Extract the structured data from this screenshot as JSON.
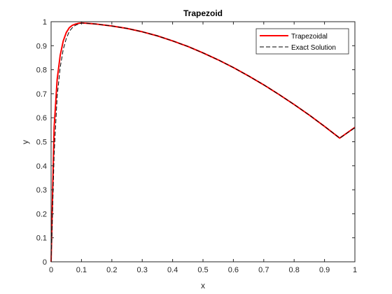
{
  "chart_data": {
    "type": "line",
    "title": "Trapezoid",
    "xlabel": "x",
    "ylabel": "y",
    "xlim": [
      0,
      1
    ],
    "ylim": [
      0,
      1
    ],
    "x_ticks": [
      "0",
      "0.1",
      "0.2",
      "0.3",
      "0.4",
      "0.5",
      "0.6",
      "0.7",
      "0.8",
      "0.9",
      "1"
    ],
    "y_ticks": [
      "0",
      "0.1",
      "0.2",
      "0.3",
      "0.4",
      "0.5",
      "0.6",
      "0.7",
      "0.8",
      "0.9",
      "1"
    ],
    "grid": false,
    "legend_position": "top-right",
    "series": [
      {
        "name": "Trapezoidal",
        "color": "#ff0000",
        "style": "solid",
        "x": [
          0,
          0.005,
          0.01,
          0.02,
          0.03,
          0.04,
          0.05,
          0.06,
          0.07,
          0.08,
          0.09,
          0.1,
          0.11,
          0.12,
          0.15,
          0.2,
          0.25,
          0.3,
          0.35,
          0.4,
          0.45,
          0.5,
          0.55,
          0.6,
          0.65,
          0.7,
          0.75,
          0.8,
          0.85,
          0.9,
          0.95,
          1.0
        ],
        "y": [
          0,
          0.29,
          0.56,
          0.76,
          0.86,
          0.92,
          0.955,
          0.975,
          0.985,
          0.99,
          0.993,
          0.995,
          0.994,
          0.993,
          0.99,
          0.982,
          0.972,
          0.958,
          0.941,
          0.92,
          0.897,
          0.87,
          0.841,
          0.809,
          0.774,
          0.737,
          0.697,
          0.655,
          0.611,
          0.564,
          0.515,
          0.56
        ]
      },
      {
        "name": "Exact Solution",
        "color": "#000000",
        "style": "dashed",
        "x": [
          0,
          0.005,
          0.01,
          0.02,
          0.03,
          0.04,
          0.05,
          0.06,
          0.07,
          0.08,
          0.09,
          0.1,
          0.11,
          0.12,
          0.15,
          0.2,
          0.25,
          0.3,
          0.35,
          0.4,
          0.45,
          0.5,
          0.55,
          0.6,
          0.65,
          0.7,
          0.75,
          0.8,
          0.85,
          0.9,
          0.95,
          1.0
        ],
        "y": [
          0,
          0.22,
          0.45,
          0.69,
          0.81,
          0.885,
          0.93,
          0.96,
          0.975,
          0.985,
          0.99,
          0.994,
          0.994,
          0.993,
          0.99,
          0.982,
          0.972,
          0.958,
          0.941,
          0.92,
          0.897,
          0.87,
          0.841,
          0.809,
          0.774,
          0.737,
          0.697,
          0.655,
          0.611,
          0.564,
          0.515,
          0.558
        ]
      }
    ]
  }
}
